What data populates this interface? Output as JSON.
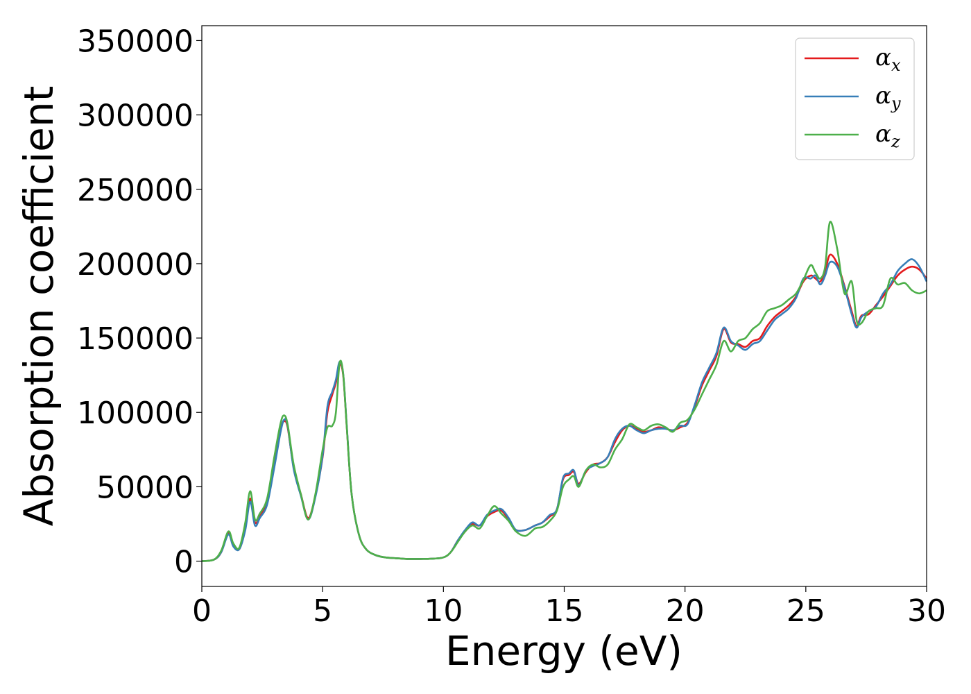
{
  "chart_data": {
    "type": "line",
    "xlabel": "Energy (eV)",
    "ylabel": "Absorption coefficient",
    "xlim": [
      0,
      30
    ],
    "ylim": [
      -17000,
      360000
    ],
    "xticks": [
      0,
      5,
      10,
      15,
      20,
      25,
      30
    ],
    "yticks": [
      0,
      50000,
      100000,
      150000,
      200000,
      250000,
      300000,
      350000
    ],
    "grid": false,
    "legend_position": "top-right",
    "series": [
      {
        "name": "α_x",
        "label_base": "α",
        "label_sub": "x",
        "color": "#e41a1c",
        "x": [
          0,
          0.5,
          0.8,
          1.1,
          1.3,
          1.55,
          1.8,
          2.0,
          2.2,
          2.4,
          2.7,
          3.0,
          3.25,
          3.4,
          3.55,
          3.8,
          4.1,
          4.4,
          4.7,
          5.0,
          5.2,
          5.4,
          5.55,
          5.7,
          5.85,
          6.0,
          6.2,
          6.5,
          6.8,
          7.2,
          7.6,
          8.0,
          8.5,
          9.0,
          9.5,
          10.0,
          10.3,
          10.6,
          10.9,
          11.2,
          11.5,
          11.8,
          12.1,
          12.4,
          12.7,
          13.0,
          13.4,
          13.8,
          14.1,
          14.4,
          14.7,
          14.95,
          15.2,
          15.4,
          15.6,
          15.9,
          16.2,
          16.5,
          16.8,
          17.1,
          17.4,
          17.7,
          18.0,
          18.3,
          18.6,
          18.9,
          19.2,
          19.5,
          19.8,
          20.1,
          20.4,
          20.7,
          21.0,
          21.3,
          21.6,
          21.9,
          22.2,
          22.5,
          22.8,
          23.1,
          23.4,
          23.7,
          24.0,
          24.3,
          24.6,
          24.9,
          25.2,
          25.4,
          25.6,
          25.8,
          26.0,
          26.3,
          26.6,
          26.9,
          27.1,
          27.3,
          27.6,
          27.9,
          28.2,
          28.5,
          28.8,
          29.1,
          29.4,
          29.7,
          30.0
        ],
        "values": [
          0,
          1000,
          6000,
          19000,
          11000,
          8000,
          22000,
          42000,
          26000,
          30000,
          40000,
          65000,
          88000,
          94000,
          90000,
          63000,
          45000,
          29000,
          44000,
          70000,
          100000,
          112000,
          120000,
          132000,
          125000,
          90000,
          45000,
          18000,
          8000,
          4000,
          2500,
          2000,
          1500,
          1500,
          1600,
          2500,
          6000,
          14000,
          20000,
          25000,
          24000,
          30000,
          33000,
          34000,
          28000,
          21000,
          21000,
          24000,
          26000,
          30000,
          35000,
          55000,
          58000,
          60000,
          52000,
          60000,
          65000,
          66000,
          70000,
          80000,
          88000,
          91000,
          89000,
          87000,
          88000,
          90000,
          89000,
          88000,
          90000,
          93000,
          104000,
          118000,
          128000,
          138000,
          156000,
          147000,
          146000,
          144000,
          148000,
          150000,
          158000,
          164000,
          168000,
          172000,
          178000,
          188000,
          192000,
          190000,
          188000,
          195000,
          206000,
          200000,
          185000,
          168000,
          158000,
          165000,
          166000,
          172000,
          178000,
          185000,
          192000,
          196000,
          198000,
          196000,
          190000
        ]
      },
      {
        "name": "α_y",
        "label_base": "α",
        "label_sub": "y",
        "color": "#377eb8",
        "x": [
          0,
          0.5,
          0.8,
          1.1,
          1.3,
          1.55,
          1.8,
          2.0,
          2.2,
          2.4,
          2.7,
          3.0,
          3.25,
          3.4,
          3.55,
          3.8,
          4.1,
          4.4,
          4.7,
          5.0,
          5.2,
          5.4,
          5.55,
          5.7,
          5.85,
          6.0,
          6.2,
          6.5,
          6.8,
          7.2,
          7.6,
          8.0,
          8.5,
          9.0,
          9.5,
          10.0,
          10.3,
          10.6,
          10.9,
          11.2,
          11.5,
          11.8,
          12.1,
          12.4,
          12.7,
          13.0,
          13.4,
          13.8,
          14.1,
          14.4,
          14.7,
          14.95,
          15.2,
          15.4,
          15.6,
          15.9,
          16.2,
          16.5,
          16.8,
          17.1,
          17.4,
          17.7,
          18.0,
          18.3,
          18.6,
          18.9,
          19.2,
          19.5,
          19.8,
          20.1,
          20.4,
          20.7,
          21.0,
          21.3,
          21.6,
          21.9,
          22.2,
          22.5,
          22.8,
          23.1,
          23.4,
          23.7,
          24.0,
          24.3,
          24.6,
          24.9,
          25.2,
          25.4,
          25.6,
          25.8,
          26.0,
          26.3,
          26.6,
          26.9,
          27.1,
          27.3,
          27.6,
          27.9,
          28.2,
          28.5,
          28.8,
          29.1,
          29.4,
          29.7,
          30.0
        ],
        "values": [
          0,
          1000,
          6000,
          18000,
          10000,
          8000,
          21000,
          40000,
          24000,
          29000,
          38000,
          63000,
          86000,
          95000,
          91000,
          62000,
          44000,
          28000,
          43000,
          71000,
          104000,
          114000,
          122000,
          134000,
          126000,
          91000,
          45000,
          18000,
          8000,
          4000,
          2500,
          2000,
          1500,
          1500,
          1600,
          2500,
          6000,
          14000,
          21000,
          26000,
          24000,
          31000,
          34000,
          35000,
          29000,
          21000,
          21000,
          24000,
          26000,
          31000,
          35000,
          56000,
          59000,
          61000,
          51000,
          61000,
          64000,
          66000,
          70000,
          82000,
          89000,
          91000,
          88000,
          86000,
          88000,
          89000,
          89000,
          88000,
          91000,
          92000,
          105000,
          120000,
          130000,
          140000,
          157000,
          148000,
          145000,
          142000,
          146000,
          148000,
          155000,
          162000,
          166000,
          170000,
          177000,
          190000,
          190000,
          192000,
          186000,
          192000,
          201000,
          198000,
          184000,
          166000,
          157000,
          164000,
          168000,
          171000,
          180000,
          186000,
          195000,
          200000,
          203000,
          198000,
          188000
        ]
      },
      {
        "name": "α_z",
        "label_base": "α",
        "label_sub": "z",
        "color": "#4daf4a",
        "x": [
          0,
          0.5,
          0.8,
          1.1,
          1.3,
          1.55,
          1.8,
          2.0,
          2.2,
          2.4,
          2.7,
          3.0,
          3.25,
          3.4,
          3.55,
          3.8,
          4.1,
          4.4,
          4.7,
          5.0,
          5.2,
          5.4,
          5.55,
          5.7,
          5.85,
          6.0,
          6.2,
          6.5,
          6.8,
          7.2,
          7.6,
          8.0,
          8.5,
          9.0,
          9.5,
          10.0,
          10.3,
          10.6,
          10.9,
          11.2,
          11.5,
          11.8,
          12.1,
          12.4,
          12.7,
          13.0,
          13.4,
          13.8,
          14.1,
          14.4,
          14.7,
          14.95,
          15.2,
          15.4,
          15.6,
          15.9,
          16.2,
          16.5,
          16.8,
          17.1,
          17.4,
          17.7,
          18.0,
          18.3,
          18.6,
          18.9,
          19.2,
          19.5,
          19.8,
          20.1,
          20.4,
          20.7,
          21.0,
          21.3,
          21.6,
          21.9,
          22.2,
          22.5,
          22.8,
          23.1,
          23.4,
          23.7,
          24.0,
          24.3,
          24.6,
          24.9,
          25.2,
          25.4,
          25.6,
          25.8,
          26.0,
          26.3,
          26.6,
          26.9,
          27.1,
          27.3,
          27.6,
          27.9,
          28.2,
          28.5,
          28.8,
          29.1,
          29.4,
          29.7,
          30.0
        ],
        "values": [
          0,
          1000,
          7000,
          20000,
          12000,
          9000,
          26000,
          47000,
          28000,
          32000,
          42000,
          70000,
          92000,
          98000,
          92000,
          65000,
          45000,
          28000,
          45000,
          75000,
          90000,
          91000,
          100000,
          133000,
          126000,
          90000,
          45000,
          18000,
          8000,
          4000,
          2500,
          2000,
          1500,
          1500,
          1600,
          2500,
          6000,
          13000,
          20000,
          24000,
          22000,
          30000,
          37000,
          32000,
          27000,
          20000,
          17000,
          22000,
          23000,
          27000,
          34000,
          50000,
          55000,
          57000,
          50000,
          61000,
          65000,
          63000,
          65000,
          75000,
          82000,
          92000,
          90000,
          88000,
          91000,
          92000,
          90000,
          87000,
          93000,
          95000,
          102000,
          112000,
          122000,
          132000,
          148000,
          141000,
          148000,
          150000,
          156000,
          160000,
          168000,
          170000,
          172000,
          176000,
          180000,
          189000,
          199000,
          194000,
          190000,
          198000,
          228000,
          210000,
          180000,
          188000,
          162000,
          160000,
          168000,
          170000,
          172000,
          190000,
          186000,
          187000,
          182000,
          180000,
          182000
        ]
      }
    ]
  }
}
